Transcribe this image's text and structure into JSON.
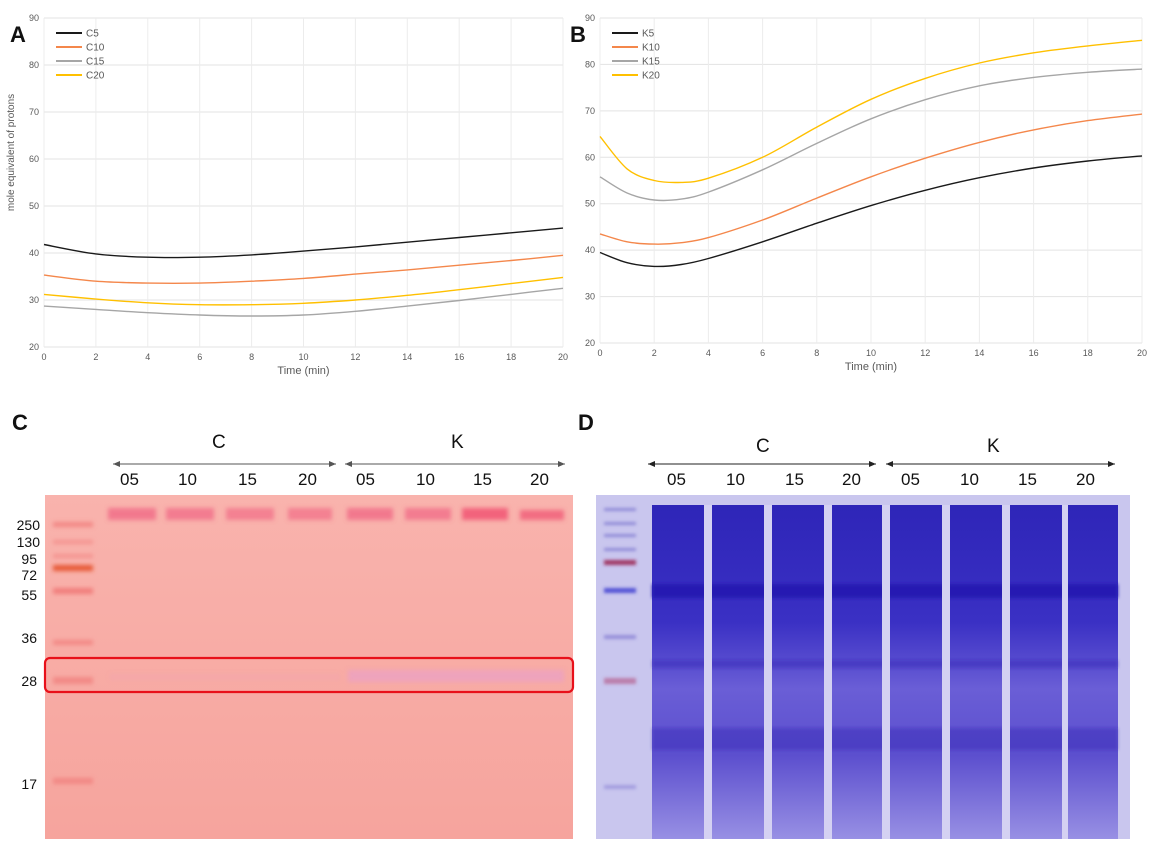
{
  "panels": {
    "a": {
      "letter": "A"
    },
    "b": {
      "letter": "B"
    },
    "c": {
      "letter": "C"
    },
    "d": {
      "letter": "D"
    }
  },
  "chart_data": [
    {
      "type": "line",
      "xlabel": "Time (min)",
      "ylabel": "mole equivalent of protons",
      "xlim": [
        0,
        20
      ],
      "ylim": [
        20,
        90
      ],
      "xticks": [
        0,
        2,
        4,
        6,
        8,
        10,
        12,
        14,
        16,
        18,
        20
      ],
      "yticks": [
        20,
        30,
        40,
        50,
        60,
        70,
        80,
        90
      ],
      "grid": true,
      "legend": "top-left",
      "x": [
        0,
        2,
        4,
        6,
        8,
        10,
        12,
        14,
        16,
        18,
        20
      ],
      "series": [
        {
          "name": "C5",
          "color": "#1a1a1a",
          "values": [
            41.8,
            39.8,
            39.1,
            39.1,
            39.6,
            40.4,
            41.3,
            42.3,
            43.3,
            44.3,
            45.3
          ]
        },
        {
          "name": "C10",
          "color": "#f4874b",
          "values": [
            35.3,
            34.0,
            33.6,
            33.6,
            34.0,
            34.6,
            35.5,
            36.4,
            37.4,
            38.4,
            39.5
          ]
        },
        {
          "name": "C15",
          "color": "#a6a6a6",
          "values": [
            28.7,
            28.0,
            27.3,
            26.8,
            26.6,
            26.8,
            27.6,
            28.7,
            29.9,
            31.2,
            32.5
          ]
        },
        {
          "name": "C20",
          "color": "#ffc000",
          "values": [
            31.2,
            30.2,
            29.4,
            29.0,
            29.0,
            29.3,
            30.0,
            31.0,
            32.2,
            33.5,
            34.8
          ]
        }
      ]
    },
    {
      "type": "line",
      "xlabel": "Time (min)",
      "ylabel": "",
      "xlim": [
        0,
        20
      ],
      "ylim": [
        20,
        90
      ],
      "xticks": [
        0,
        2,
        4,
        6,
        8,
        10,
        12,
        14,
        16,
        18,
        20
      ],
      "yticks": [
        20,
        30,
        40,
        50,
        60,
        70,
        80,
        90
      ],
      "grid": true,
      "legend": "top-left",
      "x": [
        0,
        1,
        2,
        3,
        4,
        6,
        8,
        10,
        12,
        14,
        16,
        18,
        20
      ],
      "series": [
        {
          "name": "K5",
          "color": "#1a1a1a",
          "values": [
            39.5,
            37.3,
            36.5,
            36.9,
            38.2,
            41.8,
            45.8,
            49.6,
            52.9,
            55.6,
            57.7,
            59.2,
            60.3
          ]
        },
        {
          "name": "K10",
          "color": "#f4874b",
          "values": [
            43.5,
            41.8,
            41.3,
            41.6,
            42.7,
            46.5,
            51.2,
            55.8,
            59.8,
            63.2,
            65.9,
            67.9,
            69.3
          ]
        },
        {
          "name": "K15",
          "color": "#a6a6a6",
          "values": [
            55.8,
            52.3,
            50.8,
            51.0,
            52.5,
            57.3,
            63.0,
            68.3,
            72.4,
            75.4,
            77.2,
            78.3,
            79.0
          ]
        },
        {
          "name": "K20",
          "color": "#ffc000",
          "values": [
            64.5,
            57.5,
            55.0,
            54.6,
            55.5,
            60.0,
            66.5,
            72.5,
            77.0,
            80.3,
            82.5,
            84.0,
            85.2
          ]
        }
      ]
    }
  ],
  "gel_c": {
    "group_c": "C",
    "group_k": "K",
    "lanes": [
      "05",
      "10",
      "15",
      "20",
      "05",
      "10",
      "15",
      "20"
    ],
    "markers": [
      "250",
      "130",
      "95",
      "72",
      "55",
      "36",
      "28",
      "17"
    ]
  },
  "gel_d": {
    "group_c": "C",
    "group_k": "K",
    "lanes": [
      "05",
      "10",
      "15",
      "20",
      "05",
      "10",
      "15",
      "20"
    ]
  },
  "colors": {
    "gel_c_background": "#f7a8a2",
    "gel_d_background": "#7a6fd6",
    "highlight_box": "#e8101a"
  }
}
